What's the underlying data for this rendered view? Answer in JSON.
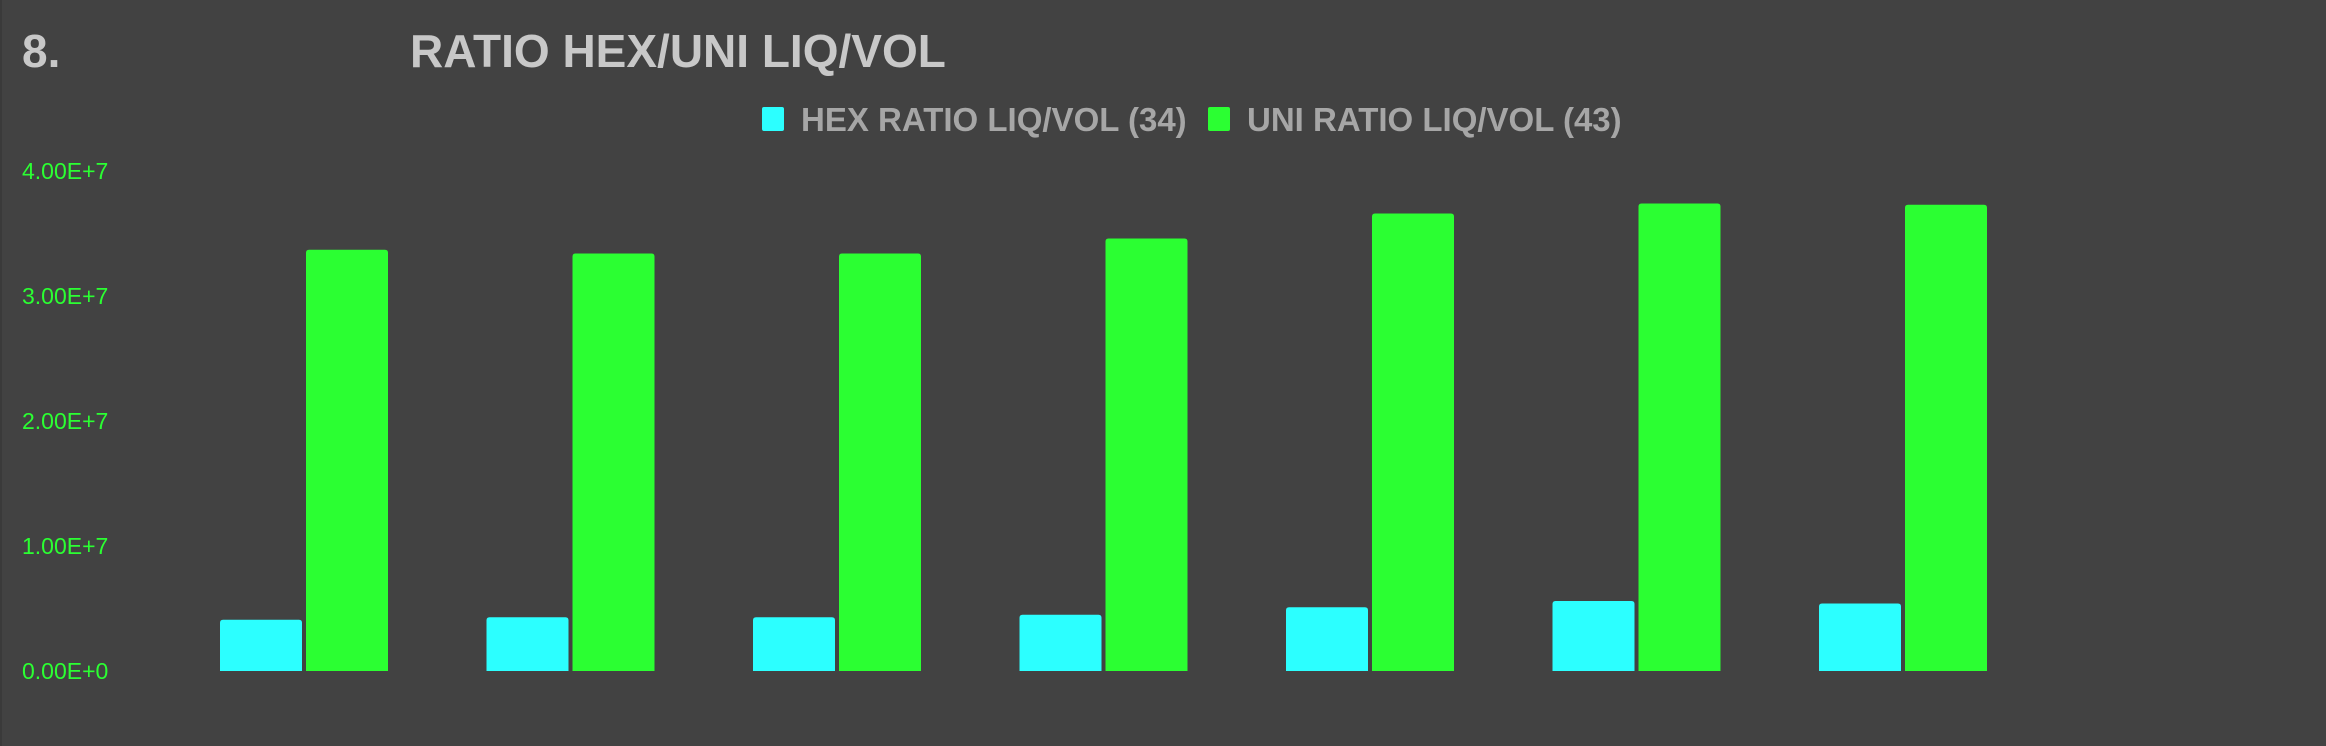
{
  "header": {
    "number": "8.",
    "title": "RATIO HEX/UNI LIQ/VOL"
  },
  "colors": {
    "background": "#424242",
    "hex": "#2cffff",
    "uni": "#2bff32",
    "axis_text": "#2bff32",
    "title_text": "#c8c8c8",
    "legend_text": "#a6a6a6"
  },
  "chart_data": {
    "type": "bar",
    "title": "RATIO HEX/UNI LIQ/VOL",
    "categories": [
      "",
      "",
      "",
      "",
      "",
      "",
      ""
    ],
    "series": [
      {
        "name": "HEX RATIO LIQ/VOL (34)",
        "color": "#2cffff",
        "values": [
          4100000,
          4300000,
          4300000,
          4500000,
          5100000,
          5600000,
          5400000
        ]
      },
      {
        "name": "UNI RATIO LIQ/VOL (43)",
        "color": "#2bff32",
        "values": [
          33700000,
          33400000,
          33400000,
          34600000,
          36600000,
          37400000,
          37300000
        ]
      }
    ],
    "ylim": [
      0,
      40000000
    ],
    "yticks": [
      0,
      10000000,
      20000000,
      30000000,
      40000000
    ],
    "ytick_labels": [
      "0.00E+0",
      "1.00E+7",
      "2.00E+7",
      "3.00E+7",
      "4.00E+7"
    ],
    "xlabel": "",
    "ylabel": "",
    "grid": false,
    "legend": "top-center"
  }
}
